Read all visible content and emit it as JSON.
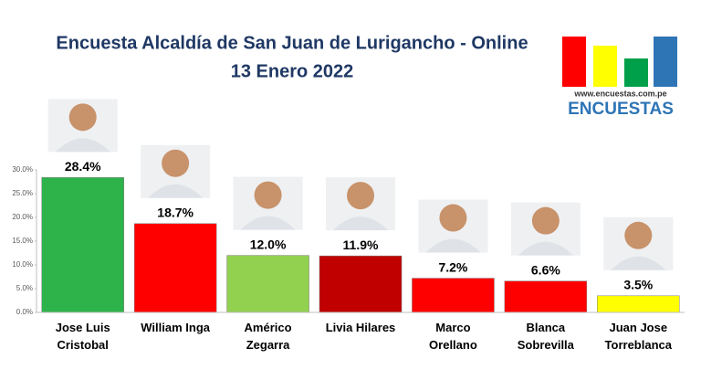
{
  "chart_data": {
    "type": "bar",
    "title": "Encuesta Alcaldía de San Juan de Lurigancho - Online",
    "subtitle": "13 Enero 2022",
    "logo_url": "www.encuestas.com.pe",
    "logo_name": "ENCUESTAS",
    "categories": [
      "Jose Luis Cristobal",
      "William Inga",
      "Américo Zegarra",
      "Livia Hilares",
      "Marco Orellano",
      "Blanca Sobrevilla",
      "Juan Jose Torreblanca"
    ],
    "values": [
      28.4,
      18.7,
      12.0,
      11.9,
      7.2,
      6.6,
      3.5
    ],
    "value_labels": [
      "28.4%",
      "18.7%",
      "12.0%",
      "11.9%",
      "7.2%",
      "6.6%",
      "3.5%"
    ],
    "colors": [
      "#2eb24a",
      "#ff0000",
      "#92d050",
      "#c00000",
      "#ff0000",
      "#ff0000",
      "#ffff00"
    ],
    "ylim": [
      0,
      30
    ],
    "yticks": [
      {
        "value": 0,
        "label": "0.0%"
      },
      {
        "value": 5,
        "label": "5.0%"
      },
      {
        "value": 10,
        "label": "10.0%"
      },
      {
        "value": 15,
        "label": "15.0%"
      },
      {
        "value": 20,
        "label": "20.0%"
      },
      {
        "value": 25,
        "label": "25.0%"
      },
      {
        "value": 30,
        "label": "30.0%"
      }
    ]
  }
}
